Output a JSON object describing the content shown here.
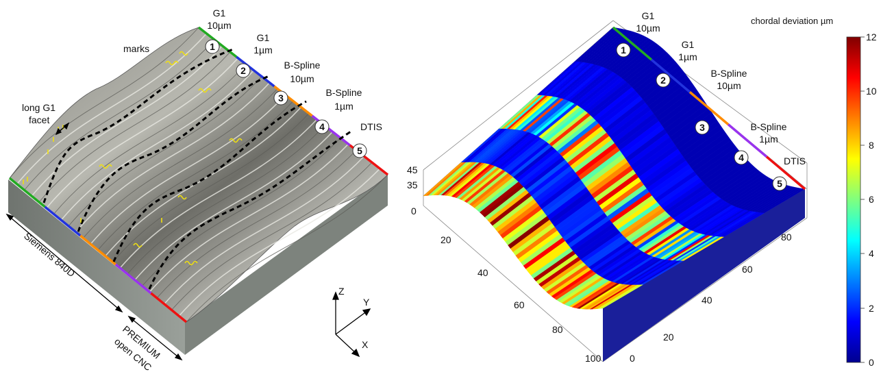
{
  "left_panel": {
    "annotations": {
      "marks": "marks",
      "long_facet_line1": "long G1",
      "long_facet_line2": "facet",
      "controller1": "Siemens 840D",
      "controller2_line1": "PREMIUM",
      "controller2_line2": "open CNC"
    },
    "axes": {
      "z": "Z",
      "y": "Y",
      "x": "X"
    },
    "strategies": [
      {
        "id": "1",
        "line1": "G1",
        "line2": "10µm",
        "color": "#22aa22"
      },
      {
        "id": "2",
        "line1": "G1",
        "line2": "1µm",
        "color": "#2233dd"
      },
      {
        "id": "3",
        "line1": "B-Spline",
        "line2": "10µm",
        "color": "#ff8c00"
      },
      {
        "id": "4",
        "line1": "B-Spline",
        "line2": "1µm",
        "color": "#9933ee"
      },
      {
        "id": "5",
        "line1": "DTIS",
        "line2": "",
        "color": "#ee1111"
      }
    ]
  },
  "right_panel": {
    "strategies": [
      {
        "id": "1",
        "line1": "G1",
        "line2": "10µm"
      },
      {
        "id": "2",
        "line1": "G1",
        "line2": "1µm"
      },
      {
        "id": "3",
        "line1": "B-Spline",
        "line2": "10µm"
      },
      {
        "id": "4",
        "line1": "B-Spline",
        "line2": "1µm"
      },
      {
        "id": "5",
        "line1": "DTIS",
        "line2": ""
      }
    ],
    "z_ticks": [
      "45",
      "35",
      "0"
    ],
    "x_ticks": [
      "20",
      "40",
      "60",
      "80",
      "100"
    ],
    "y_ticks": [
      "0",
      "20",
      "40",
      "60",
      "80"
    ]
  },
  "colorbar": {
    "title": "chordal deviation µm",
    "ticks": [
      "12",
      "10",
      "8",
      "6",
      "4",
      "2",
      "0"
    ],
    "range": [
      0,
      12
    ],
    "colormap": "jet"
  }
}
